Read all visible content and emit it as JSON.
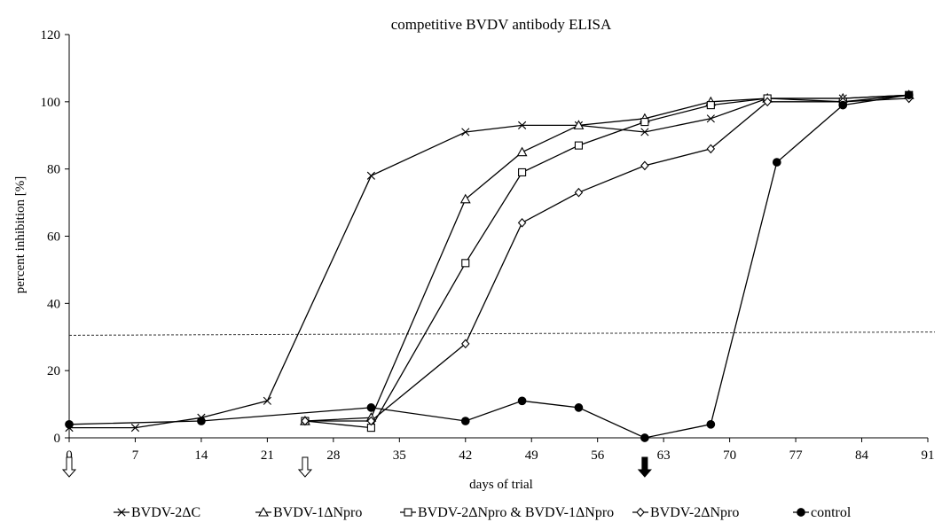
{
  "chart_data": {
    "type": "line",
    "title": "competitive BVDV antibody ELISA",
    "xlabel": "days of trial",
    "ylabel": "percent inhibition [%]",
    "xlim": [
      0,
      91
    ],
    "ylim": [
      0,
      120
    ],
    "xticks": [
      0,
      7,
      14,
      21,
      28,
      35,
      42,
      49,
      56,
      63,
      70,
      77,
      84,
      91
    ],
    "yticks": [
      0,
      20,
      40,
      60,
      80,
      100,
      120
    ],
    "grid": false,
    "legend_position": "bottom",
    "threshold": {
      "y": [
        30.5,
        31.5
      ],
      "style": "dotted"
    },
    "arrows": [
      {
        "x": 0,
        "kind": "open"
      },
      {
        "x": 25,
        "kind": "open"
      },
      {
        "x": 61,
        "kind": "filled"
      }
    ],
    "series": [
      {
        "name": "BVDV-2ΔC",
        "marker": "x",
        "x": [
          0,
          7,
          14,
          21,
          32,
          42,
          48,
          54,
          61,
          68,
          74,
          82,
          89
        ],
        "y": [
          3,
          3,
          6,
          11,
          78,
          91,
          93,
          93,
          91,
          95,
          101,
          101,
          102
        ]
      },
      {
        "name": "BVDV-1ΔNpro",
        "marker": "triangle",
        "x": [
          25,
          32,
          42,
          48,
          54,
          61,
          68,
          74,
          82,
          89
        ],
        "y": [
          5,
          6,
          71,
          85,
          93,
          95,
          100,
          101,
          101,
          102
        ]
      },
      {
        "name": "BVDV-2ΔNpro & BVDV-1ΔNpro",
        "marker": "square",
        "x": [
          25,
          32,
          42,
          48,
          54,
          61,
          68,
          74,
          82,
          89
        ],
        "y": [
          5,
          3,
          52,
          79,
          87,
          94,
          99,
          101,
          100,
          102
        ]
      },
      {
        "name": "BVDV-2ΔNpro",
        "marker": "diamond",
        "x": [
          25,
          32,
          42,
          48,
          54,
          61,
          68,
          74,
          82,
          89
        ],
        "y": [
          5,
          5,
          28,
          64,
          73,
          81,
          86,
          100,
          100,
          101
        ]
      },
      {
        "name": "control",
        "marker": "circle",
        "x": [
          0,
          14,
          32,
          42,
          48,
          54,
          61,
          68,
          75,
          82,
          89
        ],
        "y": [
          4,
          5,
          9,
          5,
          11,
          9,
          0,
          4,
          82,
          99,
          102
        ]
      }
    ]
  }
}
